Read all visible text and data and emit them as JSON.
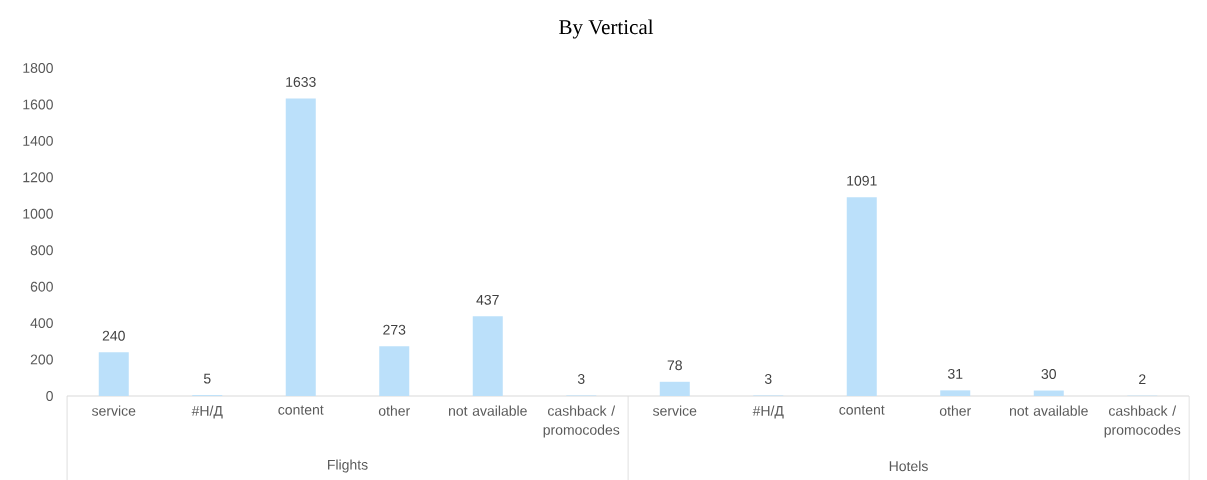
{
  "chart_data": {
    "type": "bar",
    "title": "By Vertical",
    "categories": [
      "service",
      "#Н/Д",
      "content",
      "other",
      "not available",
      "cashback / promocodes",
      "service",
      "#Н/Д",
      "content",
      "other",
      "not available",
      "cashback / promocodes"
    ],
    "values": [
      240,
      5,
      1633,
      273,
      437,
      3,
      78,
      3,
      1091,
      31,
      30,
      2
    ],
    "color": "#bbe0fa",
    "ylim": [
      0,
      1800
    ],
    "yticks": [
      0,
      200,
      400,
      600,
      800,
      1000,
      1200,
      1400,
      1600,
      1800
    ],
    "data_labels": true,
    "annotations": [
      "Flights",
      "Hotels"
    ]
  }
}
